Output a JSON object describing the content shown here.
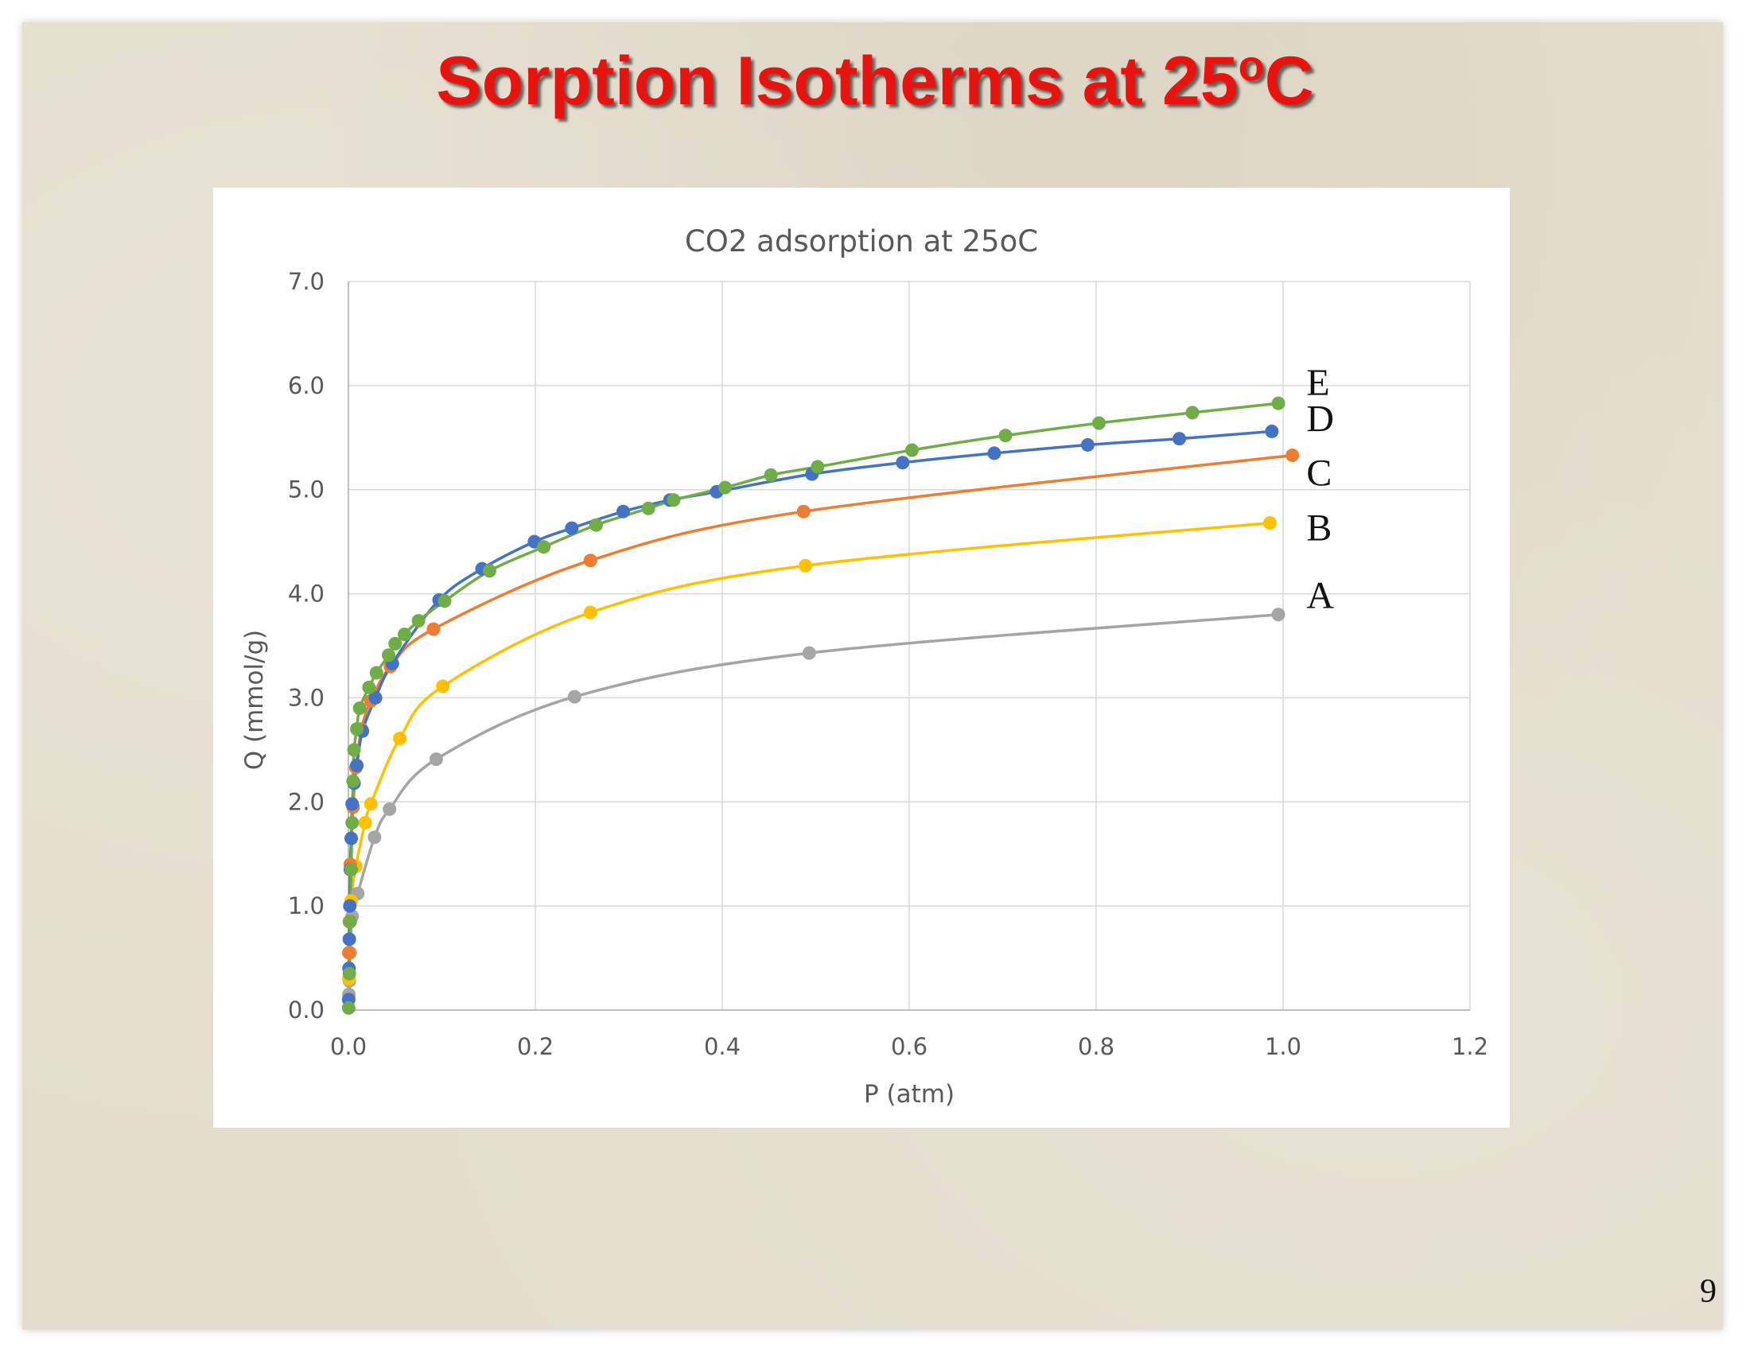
{
  "slide": {
    "title_main": "Sorption Isotherms at 25",
    "title_sup": "o",
    "title_tail": "C",
    "page_number": "9"
  },
  "colors": {
    "title_red": "#e8120f",
    "grid": "#d9d9d9",
    "axis": "#bfbfbf",
    "text_gray": "#595959"
  },
  "chart_data": {
    "type": "line",
    "title": "CO2 adsorption at 25oC",
    "xlabel": "P (atm)",
    "ylabel": "Q (mmol/g)",
    "xlim": [
      0,
      1.2
    ],
    "ylim": [
      0,
      7
    ],
    "xticks": [
      "0.0",
      "0.2",
      "0.4",
      "0.6",
      "0.8",
      "1.0",
      "1.2"
    ],
    "yticks": [
      "0.0",
      "1.0",
      "2.0",
      "3.0",
      "4.0",
      "5.0",
      "6.0",
      "7.0"
    ],
    "grid": true,
    "legend": "none",
    "series": [
      {
        "name": "A",
        "color": "#a5a5a5",
        "points": [
          [
            0.0005,
            0.15
          ],
          [
            0.001,
            0.28
          ],
          [
            0.002,
            0.55
          ],
          [
            0.004,
            0.9
          ],
          [
            0.01,
            1.12
          ],
          [
            0.028,
            1.66
          ],
          [
            0.044,
            1.93
          ],
          [
            0.094,
            2.41
          ],
          [
            0.242,
            3.01
          ],
          [
            0.493,
            3.43
          ],
          [
            0.995,
            3.8
          ]
        ]
      },
      {
        "name": "B",
        "color": "#ffc000",
        "points": [
          [
            0.0005,
            0.3
          ],
          [
            0.001,
            0.55
          ],
          [
            0.003,
            1.05
          ],
          [
            0.008,
            1.38
          ],
          [
            0.018,
            1.8
          ],
          [
            0.024,
            1.98
          ],
          [
            0.055,
            2.61
          ],
          [
            0.101,
            3.11
          ],
          [
            0.259,
            3.82
          ],
          [
            0.489,
            4.27
          ],
          [
            0.986,
            4.68
          ]
        ]
      },
      {
        "name": "C",
        "color": "#ed7d31",
        "points": [
          [
            0.0005,
            0.55
          ],
          [
            0.001,
            0.85
          ],
          [
            0.002,
            1.4
          ],
          [
            0.005,
            1.95
          ],
          [
            0.008,
            2.33
          ],
          [
            0.014,
            2.7
          ],
          [
            0.024,
            2.97
          ],
          [
            0.045,
            3.3
          ],
          [
            0.091,
            3.66
          ],
          [
            0.259,
            4.32
          ],
          [
            0.487,
            4.79
          ],
          [
            1.01,
            5.33
          ]
        ]
      },
      {
        "name": "D",
        "color": "#4472c4",
        "points": [
          [
            0.0003,
            0.1
          ],
          [
            0.0006,
            0.4
          ],
          [
            0.001,
            0.68
          ],
          [
            0.0015,
            1.0
          ],
          [
            0.002,
            1.35
          ],
          [
            0.003,
            1.65
          ],
          [
            0.004,
            1.98
          ],
          [
            0.006,
            2.18
          ],
          [
            0.009,
            2.35
          ],
          [
            0.015,
            2.68
          ],
          [
            0.029,
            3.0
          ],
          [
            0.047,
            3.33
          ],
          [
            0.097,
            3.94
          ],
          [
            0.143,
            4.24
          ],
          [
            0.199,
            4.5
          ],
          [
            0.239,
            4.63
          ],
          [
            0.294,
            4.79
          ],
          [
            0.344,
            4.9
          ],
          [
            0.394,
            4.98
          ],
          [
            0.496,
            5.15
          ],
          [
            0.593,
            5.26
          ],
          [
            0.691,
            5.35
          ],
          [
            0.791,
            5.43
          ],
          [
            0.889,
            5.49
          ],
          [
            0.988,
            5.56
          ]
        ]
      },
      {
        "name": "E",
        "color": "#70ad47",
        "points": [
          [
            0.0003,
            0.02
          ],
          [
            0.001,
            0.35
          ],
          [
            0.002,
            0.85
          ],
          [
            0.003,
            1.35
          ],
          [
            0.004,
            1.8
          ],
          [
            0.005,
            2.2
          ],
          [
            0.006,
            2.5
          ],
          [
            0.009,
            2.7
          ],
          [
            0.012,
            2.9
          ],
          [
            0.022,
            3.1
          ],
          [
            0.03,
            3.24
          ],
          [
            0.043,
            3.41
          ],
          [
            0.05,
            3.52
          ],
          [
            0.06,
            3.61
          ],
          [
            0.075,
            3.74
          ],
          [
            0.103,
            3.93
          ],
          [
            0.151,
            4.22
          ],
          [
            0.209,
            4.45
          ],
          [
            0.265,
            4.66
          ],
          [
            0.321,
            4.82
          ],
          [
            0.348,
            4.9
          ],
          [
            0.403,
            5.02
          ],
          [
            0.452,
            5.14
          ],
          [
            0.502,
            5.22
          ],
          [
            0.603,
            5.38
          ],
          [
            0.703,
            5.52
          ],
          [
            0.803,
            5.64
          ],
          [
            0.903,
            5.74
          ],
          [
            0.995,
            5.83
          ]
        ]
      }
    ]
  }
}
